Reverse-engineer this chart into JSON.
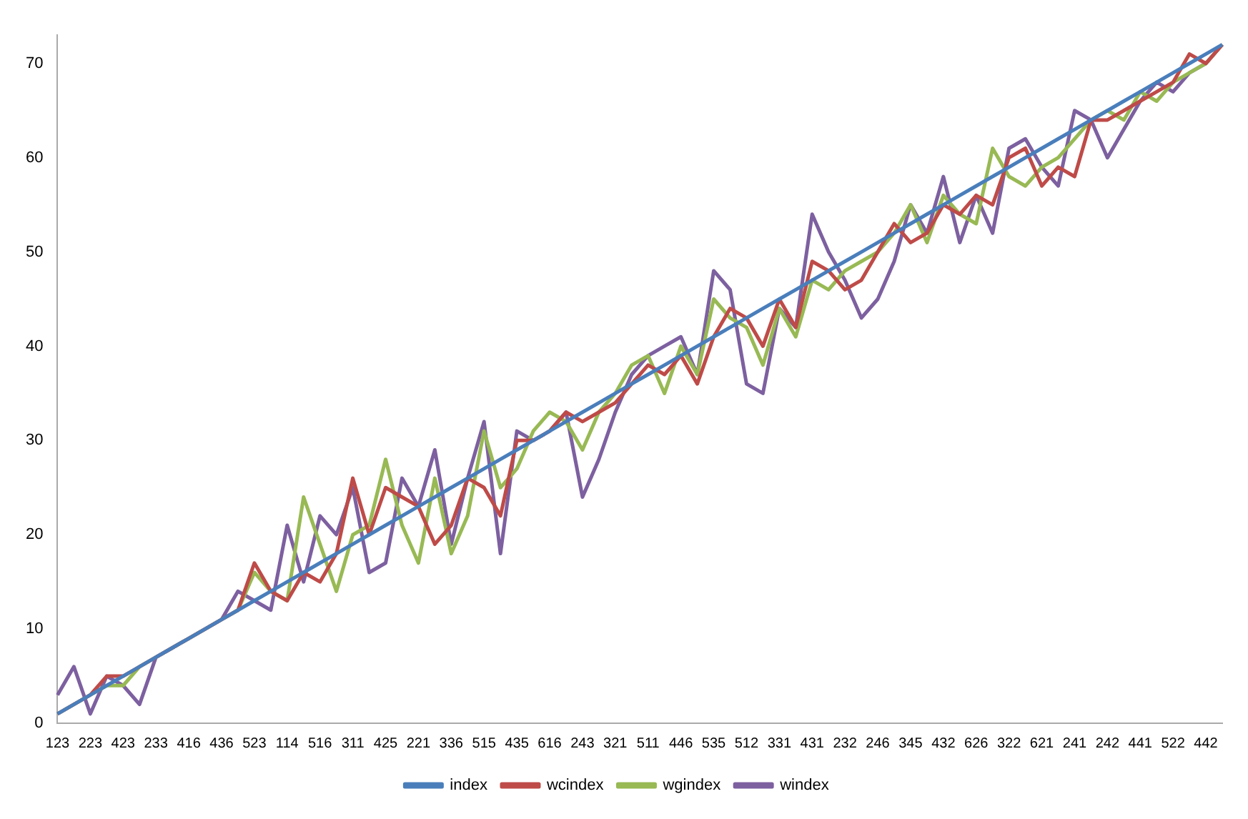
{
  "chart_data": {
    "type": "line",
    "categories": [
      "123",
      null,
      "223",
      null,
      "423",
      null,
      "233",
      null,
      "416",
      null,
      "436",
      null,
      "523",
      null,
      "114",
      null,
      "516",
      null,
      "311",
      null,
      "425",
      null,
      "221",
      null,
      "336",
      null,
      "515",
      null,
      "435",
      null,
      "616",
      null,
      "243",
      null,
      "321",
      null,
      "511",
      null,
      "446",
      null,
      "535",
      null,
      "512",
      null,
      "331",
      null,
      "431",
      null,
      "232",
      null,
      "246",
      null,
      "345",
      null,
      "432",
      null,
      "626",
      null,
      "322",
      null,
      "621",
      null,
      "241",
      null,
      "242",
      null,
      "441",
      null,
      "522",
      null,
      "442",
      null
    ],
    "series": [
      {
        "name": "index",
        "color": "#4a7ebb",
        "values": [
          1,
          2,
          3,
          4,
          5,
          6,
          7,
          8,
          9,
          10,
          11,
          12,
          13,
          14,
          15,
          16,
          17,
          18,
          19,
          20,
          21,
          22,
          23,
          24,
          25,
          26,
          27,
          28,
          29,
          30,
          31,
          32,
          33,
          34,
          35,
          36,
          37,
          38,
          39,
          40,
          41,
          42,
          43,
          44,
          45,
          46,
          47,
          48,
          49,
          50,
          51,
          52,
          53,
          54,
          55,
          56,
          57,
          58,
          59,
          60,
          61,
          62,
          63,
          64,
          65,
          66,
          67,
          68,
          69,
          70,
          71,
          72
        ]
      },
      {
        "name": "wcindex",
        "color": "#be4b48",
        "values": [
          1,
          2,
          3,
          5,
          5,
          6,
          7,
          8,
          9,
          10,
          11,
          12,
          17,
          14,
          13,
          16,
          15,
          18,
          26,
          20,
          25,
          24,
          23,
          19,
          21,
          26,
          25,
          22,
          30,
          30,
          31,
          33,
          32,
          33,
          34,
          36,
          38,
          37,
          39,
          36,
          41,
          44,
          43,
          40,
          45,
          42,
          49,
          48,
          46,
          47,
          50,
          53,
          51,
          52,
          55,
          54,
          56,
          55,
          60,
          61,
          57,
          59,
          58,
          64,
          64,
          65,
          66,
          67,
          68,
          71,
          70,
          72
        ]
      },
      {
        "name": "wgindex",
        "color": "#98b954",
        "values": [
          1,
          2,
          3,
          4,
          4,
          6,
          7,
          8,
          9,
          10,
          11,
          12,
          16,
          14,
          13,
          24,
          19,
          14,
          20,
          21,
          28,
          21,
          17,
          26,
          18,
          22,
          31,
          25,
          27,
          31,
          33,
          32,
          29,
          33,
          35,
          38,
          39,
          35,
          40,
          37,
          45,
          43,
          42,
          38,
          44,
          41,
          47,
          46,
          48,
          49,
          50,
          52,
          55,
          51,
          56,
          54,
          53,
          61,
          58,
          57,
          59,
          60,
          62,
          64,
          65,
          64,
          67,
          66,
          68,
          69,
          70,
          72
        ]
      },
      {
        "name": "windex",
        "color": "#7d60a0",
        "values": [
          3,
          6,
          1,
          5,
          4,
          2,
          7,
          8,
          9,
          10,
          11,
          14,
          13,
          12,
          21,
          15,
          22,
          20,
          25,
          16,
          17,
          26,
          23,
          29,
          19,
          26,
          32,
          18,
          31,
          30,
          31,
          33,
          24,
          28,
          33,
          37,
          39,
          40,
          41,
          37,
          48,
          46,
          36,
          35,
          44,
          42,
          54,
          50,
          47,
          43,
          45,
          49,
          55,
          52,
          58,
          51,
          56,
          52,
          61,
          62,
          59,
          57,
          65,
          64,
          60,
          63,
          66,
          68,
          67,
          69,
          70,
          72
        ]
      }
    ],
    "ylim": [
      0,
      73
    ],
    "yticks": [
      0,
      10,
      20,
      30,
      40,
      50,
      60,
      70
    ],
    "grid": false,
    "legend": "bottom",
    "marker": "none",
    "line_style": "solid"
  }
}
